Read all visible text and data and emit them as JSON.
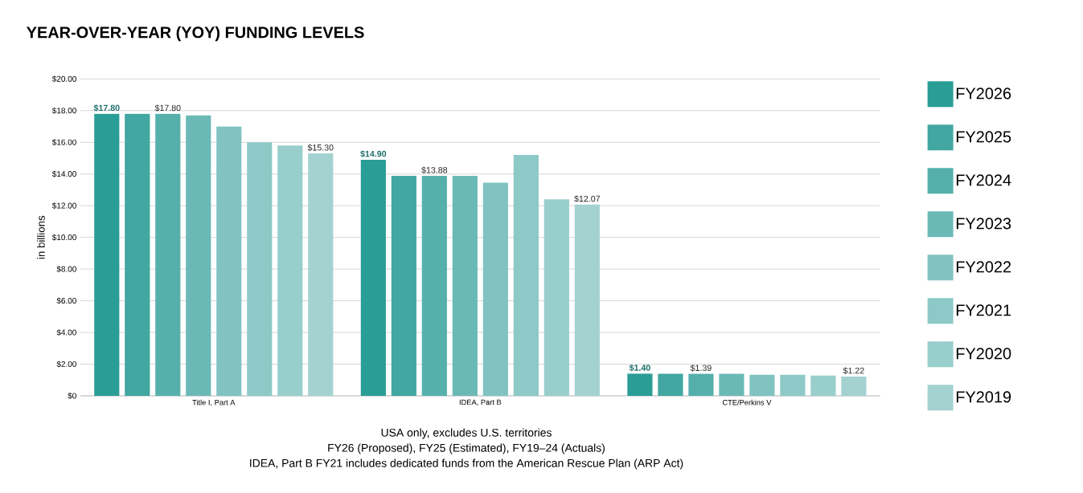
{
  "chart_data": {
    "type": "bar",
    "title": "YEAR-OVER-YEAR (YOY) FUNDING LEVELS",
    "ylabel": "in billions",
    "categories": [
      "Title I, Part A",
      "IDEA, Part B",
      "CTE/Perkins V"
    ],
    "series": [
      {
        "name": "FY2026",
        "color": "#2a9d96",
        "values": [
          17.8,
          14.9,
          1.4
        ],
        "value_labels": [
          "$17.80",
          "$14.90",
          "$1.40"
        ]
      },
      {
        "name": "FY2025",
        "color": "#42a6a1",
        "values": [
          17.8,
          13.88,
          1.39
        ]
      },
      {
        "name": "FY2024",
        "color": "#55b0ac",
        "values": [
          17.8,
          13.88,
          1.39
        ],
        "value_labels": [
          "$17.80",
          "$13.88",
          "$1.39"
        ]
      },
      {
        "name": "FY2023",
        "color": "#6bb9b6",
        "values": [
          17.7,
          13.88,
          1.39
        ]
      },
      {
        "name": "FY2022",
        "color": "#80c3c1",
        "values": [
          17.0,
          13.45,
          1.33
        ]
      },
      {
        "name": "FY2021",
        "color": "#8dc9c6",
        "values": [
          16.0,
          15.2,
          1.33
        ]
      },
      {
        "name": "FY2020",
        "color": "#98cecb",
        "values": [
          15.8,
          12.4,
          1.28
        ]
      },
      {
        "name": "FY2019",
        "color": "#a3d2d1",
        "values": [
          15.3,
          12.07,
          1.22
        ],
        "value_labels": [
          "$15.30",
          "$12.07",
          "$1.22"
        ]
      }
    ],
    "ylim": [
      0,
      20
    ],
    "yticks": [
      {
        "value": 0,
        "label": "$0"
      },
      {
        "value": 2,
        "label": "$2.00"
      },
      {
        "value": 4,
        "label": "$4.00"
      },
      {
        "value": 6,
        "label": "$6.00"
      },
      {
        "value": 8,
        "label": "$8.00"
      },
      {
        "value": 10,
        "label": "$10.00"
      },
      {
        "value": 12,
        "label": "$12.00"
      },
      {
        "value": 14,
        "label": "$14.00"
      },
      {
        "value": 16,
        "label": "$16.00"
      },
      {
        "value": 18,
        "label": "$18.00"
      },
      {
        "value": 20,
        "label": "$20.00"
      }
    ],
    "grid": "y",
    "legend": "right",
    "annotations": [
      "USA only, excludes U.S. territories",
      "FY26 (Proposed), FY25 (Estimated), FY19–24 (Actuals)",
      "IDEA, Part B FY21 includes dedicated funds from the American Rescue Plan (ARP Act)"
    ]
  }
}
